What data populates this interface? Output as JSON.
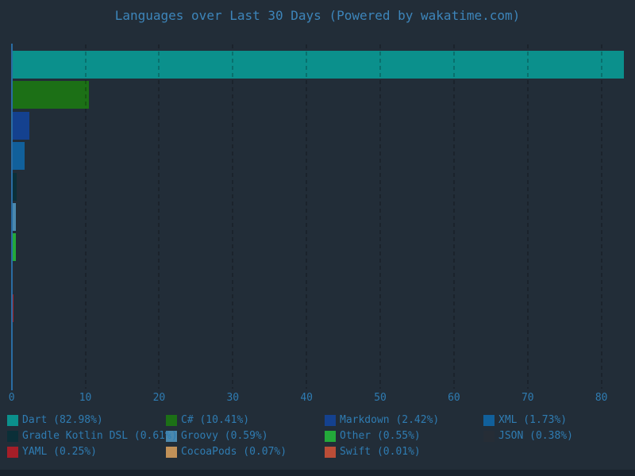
{
  "title": "Languages over Last 30 Days (Powered by wakatime.com)",
  "colors": {
    "background": "#222d38",
    "bottom_strip": "#1a232d",
    "title_text": "#3d85ba",
    "axis_text": "#2f7cb2",
    "spine": "#2a6ca3"
  },
  "chart_data": {
    "type": "bar",
    "orientation": "horizontal",
    "title": "Languages over Last 30 Days (Powered by wakatime.com)",
    "categories": [
      "Dart",
      "C#",
      "Markdown",
      "XML",
      "Gradle Kotlin DSL",
      "Groovy",
      "Other",
      "JSON",
      "YAML",
      "CocoaPods",
      "Swift"
    ],
    "values": [
      82.98,
      10.41,
      2.42,
      1.73,
      0.61,
      0.59,
      0.55,
      0.38,
      0.25,
      0.07,
      0.01
    ],
    "unit": "percent",
    "bar_colors": [
      "#0b908c",
      "#1c7016",
      "#14418f",
      "#11609b",
      "#0b2f38",
      "#4a88ae",
      "#23a93a",
      "#262d36",
      "#a51e28",
      "#c19158",
      "#bb4d37"
    ],
    "x_ticks": [
      0,
      10,
      20,
      30,
      40,
      50,
      60,
      70,
      80
    ],
    "x_tick_labels": [
      "0",
      "10",
      "20",
      "30",
      "40",
      "50",
      "60",
      "70",
      "80"
    ],
    "xlim": [
      0,
      83
    ],
    "grid": "vertical dashed gridlines over bars",
    "legend_position": "bottom, 4 columns, row-major",
    "legend_labels": [
      "Dart (82.98%)",
      "C# (10.41%)",
      "Markdown (2.42%)",
      "XML (1.73%)",
      "Gradle Kotlin DSL (0.61%)",
      "Groovy (0.59%)",
      "Other (0.55%)",
      "JSON (0.38%)",
      "YAML (0.25%)",
      "CocoaPods (0.07%)",
      "Swift (0.01%)"
    ]
  }
}
